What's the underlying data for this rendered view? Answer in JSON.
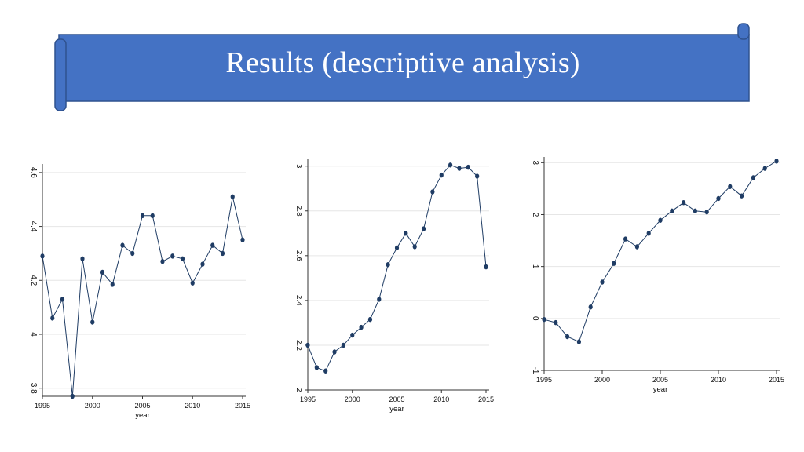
{
  "slide": {
    "title": "Results (descriptive analysis)",
    "banner_color": "#4472c4",
    "banner_edge_color": "#2f528f"
  },
  "chart_data": [
    {
      "type": "line",
      "xlabel": "year",
      "ylabel": "",
      "x": [
        1995,
        1996,
        1997,
        1998,
        1999,
        2000,
        2001,
        2002,
        2003,
        2004,
        2005,
        2006,
        2007,
        2008,
        2009,
        2010,
        2011,
        2012,
        2013,
        2014,
        2015
      ],
      "values": [
        4.29,
        4.06,
        4.13,
        3.77,
        4.28,
        4.045,
        4.23,
        4.185,
        4.33,
        4.3,
        4.44,
        4.44,
        4.27,
        4.29,
        4.28,
        4.19,
        4.26,
        4.33,
        4.3,
        4.51,
        4.35
      ],
      "xlim": [
        1995,
        2015
      ],
      "ylim": [
        3.77,
        4.62
      ],
      "xticks": [
        "1995",
        "2000",
        "2005",
        "2010",
        "2015"
      ],
      "yticks": [
        "3.8",
        "4",
        "4.2",
        "4.4",
        "4.6"
      ],
      "grid": true,
      "line_color": "#1f3c64"
    },
    {
      "type": "line",
      "xlabel": "year",
      "ylabel": "",
      "x": [
        1995,
        1996,
        1997,
        1998,
        1999,
        2000,
        2001,
        2002,
        2003,
        2004,
        2005,
        2006,
        2007,
        2008,
        2009,
        2010,
        2011,
        2012,
        2013,
        2014,
        2015
      ],
      "values": [
        2.2,
        2.1,
        2.085,
        2.17,
        2.2,
        2.245,
        2.28,
        2.315,
        2.405,
        2.56,
        2.635,
        2.7,
        2.64,
        2.72,
        2.885,
        2.96,
        3.005,
        2.99,
        2.995,
        2.955,
        2.55
      ],
      "xlim": [
        1995,
        2015
      ],
      "ylim": [
        2.0,
        3.02
      ],
      "xticks": [
        "1995",
        "2000",
        "2005",
        "2010",
        "2015"
      ],
      "yticks": [
        "2",
        "2.2",
        "2.4",
        "2.6",
        "2.8",
        "3"
      ],
      "grid": true,
      "line_color": "#1f3c64"
    },
    {
      "type": "line",
      "xlabel": "year",
      "ylabel": "",
      "x": [
        1995,
        1996,
        1997,
        1998,
        1999,
        2000,
        2001,
        2002,
        2003,
        2004,
        2005,
        2006,
        2007,
        2008,
        2009,
        2010,
        2011,
        2012,
        2013,
        2014,
        2015
      ],
      "values": [
        -0.02,
        -0.08,
        -0.35,
        -0.45,
        0.22,
        0.7,
        1.06,
        1.53,
        1.38,
        1.64,
        1.89,
        2.07,
        2.23,
        2.07,
        2.05,
        2.31,
        2.54,
        2.36,
        2.71,
        2.89,
        3.03
      ],
      "xlim": [
        1995,
        2015
      ],
      "ylim": [
        -1.0,
        3.05
      ],
      "xticks": [
        "1995",
        "2000",
        "2005",
        "2010",
        "2015"
      ],
      "yticks": [
        "-1",
        "0",
        "1",
        "2",
        "3"
      ],
      "grid": true,
      "line_color": "#1f3c64"
    }
  ]
}
